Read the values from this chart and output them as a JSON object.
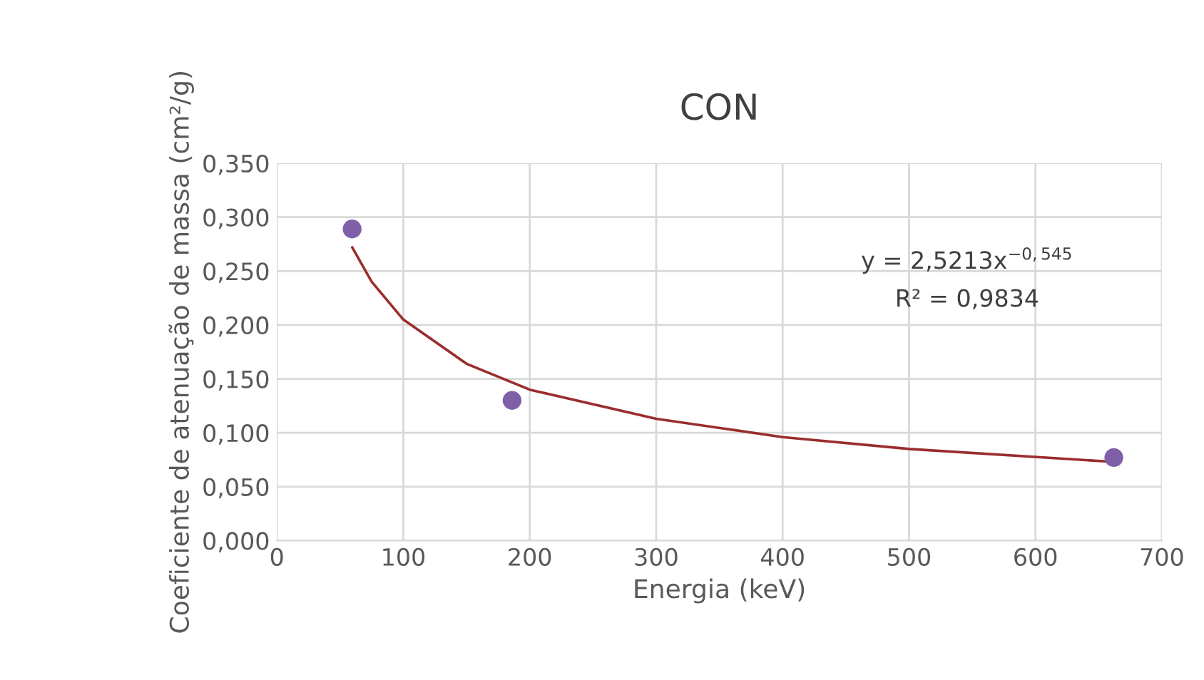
{
  "chart_data": {
    "type": "scatter",
    "title": "CON",
    "xlabel": "Energia (keV)",
    "ylabel": "Coeficiente de atenuação de massa (cm²/g)",
    "series": [
      {
        "color": "#7f5fa8",
        "x": [
          59.5,
          186,
          662
        ],
        "values": [
          0.289,
          0.13,
          0.077
        ],
        "marker": "circle"
      },
      {
        "type": "line",
        "color": "#9b2d2d",
        "x": [
          59.5,
          75,
          100,
          150,
          200,
          300,
          400,
          500,
          662
        ],
        "values": [
          0.272,
          0.24,
          0.205,
          0.164,
          0.14,
          0.113,
          0.096,
          0.085,
          0.073
        ],
        "marker": "none",
        "line_style": "solid"
      }
    ],
    "annotations": [
      "y = 2,5213x$^{−0,545}$",
      "R² = 0,9834"
    ],
    "xlim": [
      0,
      700
    ],
    "xticks": [
      0,
      100,
      200,
      300,
      400,
      500,
      600,
      700
    ],
    "ylim": [
      0,
      0.35
    ],
    "yticks": [
      {
        "value": 0,
        "label": "0,000"
      },
      {
        "value": 0.05,
        "label": "0,050"
      },
      {
        "value": 0.1,
        "label": "0,100"
      },
      {
        "value": 0.15,
        "label": "0,150"
      },
      {
        "value": 0.2,
        "label": "0,200"
      },
      {
        "value": 0.25,
        "label": "0,250"
      },
      {
        "value": 0.3,
        "label": "0,300"
      },
      {
        "value": 0.35,
        "label": "0,350"
      }
    ],
    "grid": true
  }
}
